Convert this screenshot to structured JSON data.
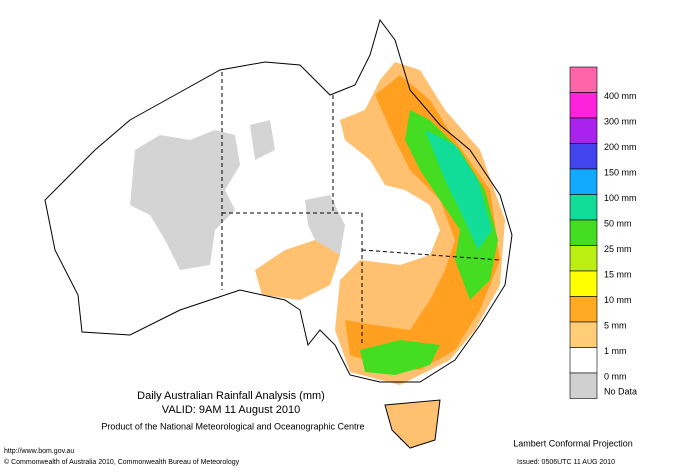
{
  "header": {
    "title": "Daily Australian Rainfall Analysis (mm)",
    "valid": "VALID: 9AM 11 August 2010",
    "product": "Product of the National Meteorological and Oceanographic Centre"
  },
  "projection": "Lambert Conformal Projection",
  "footer": {
    "url": "http://www.bom.gov.au",
    "copyright": "© Commonwealth of Australia 2010, Commonwealth Bureau of Meteorology",
    "issued": "Issued: 0506UTC 11 AUG 2010"
  },
  "legend": {
    "colors": [
      "#ff66aa",
      "#ff22dd",
      "#aa22ee",
      "#4444ee",
      "#11aaff",
      "#11dd99",
      "#44dd22",
      "#bbee11",
      "#ffff00",
      "#ffaa22",
      "#ffcc77",
      "#ffffff",
      "#d0d0d0"
    ],
    "labels": [
      "400 mm",
      "300 mm",
      "200 mm",
      "150 mm",
      "100 mm",
      "50 mm",
      "25 mm",
      "15 mm",
      "10 mm",
      "5 mm",
      "1 mm",
      "0 mm",
      "No Data"
    ]
  }
}
